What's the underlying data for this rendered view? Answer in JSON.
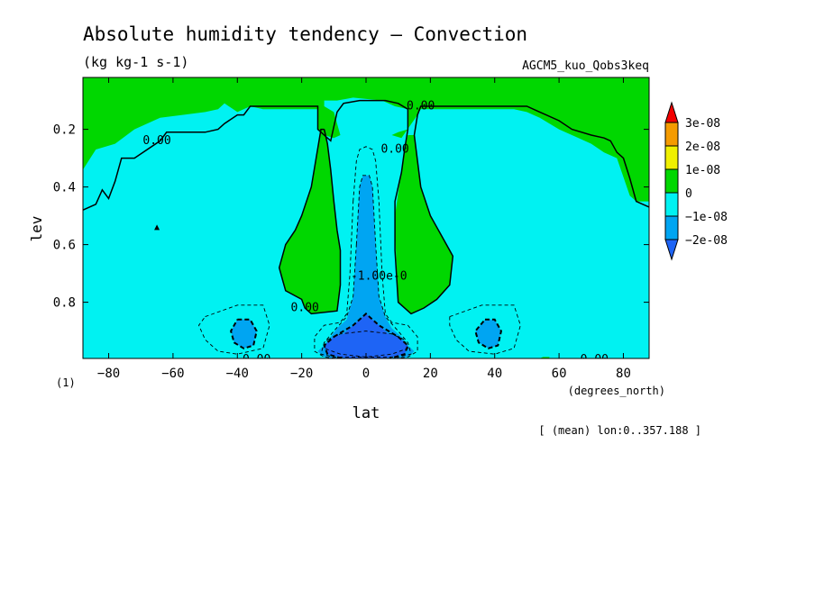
{
  "chart_data": {
    "type": "heatmap",
    "title": "Absolute humidity tendency — Convection",
    "units": "(kg kg-1 s-1)",
    "dataset": "AGCM5_kuo_Qobs3keq",
    "xlabel": "lat",
    "xunits": "(degrees_north)",
    "ylabel": "lev",
    "axis_note": "(1)",
    "footnote": "[ (mean) lon:0..357.188 ]",
    "xlim": [
      -88,
      88
    ],
    "ylim": [
      0.995,
      0.02
    ],
    "xticks": [
      -80,
      -60,
      -40,
      -20,
      0,
      20,
      40,
      60,
      80
    ],
    "yticks": [
      0.2,
      0.4,
      0.6,
      0.8
    ],
    "colorbar": {
      "levels": [
        "3e-08",
        "2e-08",
        "1e-08",
        "0",
        "−1e-08",
        "−2e-08"
      ],
      "colors": [
        "#f20000",
        "#f59b00",
        "#f0f000",
        "#00d700",
        "#00f2f2",
        "#00a5f2",
        "#1e64f5"
      ]
    },
    "contour_labels": [
      {
        "text": "0.00",
        "x": -65,
        "y": 0.24
      },
      {
        "text": "0.00",
        "x": 17,
        "y": 0.12
      },
      {
        "text": "0.00",
        "x": 9,
        "y": 0.27
      },
      {
        "text": "0.00",
        "x": -19,
        "y": 0.82
      },
      {
        "text": "-1.00e-0",
        "x": 4,
        "y": 0.71
      },
      {
        "text": "0.00",
        "x": -34,
        "y": 1.0
      },
      {
        "text": "0.00",
        "x": 71,
        "y": 1.0
      }
    ],
    "regions": [
      {
        "level": "0 to 1e-08",
        "x": [
          -88,
          -84,
          -78,
          -72,
          -64,
          -50,
          -46,
          -44,
          -40,
          -36,
          -32,
          -22,
          -15,
          -15,
          -13,
          -10,
          -8,
          -10,
          -13,
          -13,
          -9,
          -4,
          5,
          9,
          13,
          13,
          10,
          8,
          11,
          16,
          17,
          20,
          30,
          46,
          50,
          54,
          60,
          64,
          70,
          74,
          78,
          82,
          84,
          88,
          88,
          -88
        ],
        "y": [
          0.34,
          0.27,
          0.25,
          0.2,
          0.16,
          0.14,
          0.13,
          0.11,
          0.14,
          0.12,
          0.13,
          0.13,
          0.13,
          0.2,
          0.22,
          0.23,
          0.22,
          0.14,
          0.12,
          0.1,
          0.1,
          0.09,
          0.1,
          0.12,
          0.13,
          0.2,
          0.21,
          0.22,
          0.23,
          0.15,
          0.13,
          0.13,
          0.13,
          0.13,
          0.14,
          0.16,
          0.2,
          0.22,
          0.25,
          0.28,
          0.3,
          0.43,
          0.45,
          0.45,
          0.02,
          0.02
        ]
      },
      {
        "level": "0 to 1e-08",
        "x": [
          -13,
          -12,
          -11,
          -10,
          -9,
          -8,
          -8,
          -9,
          -17,
          -19,
          -20,
          -25,
          -26,
          -27,
          -25,
          -22,
          -20,
          -17,
          -14,
          -13
        ],
        "y": [
          0.2,
          0.25,
          0.34,
          0.45,
          0.55,
          0.62,
          0.74,
          0.83,
          0.84,
          0.82,
          0.79,
          0.76,
          0.72,
          0.68,
          0.6,
          0.55,
          0.5,
          0.4,
          0.2,
          0.2
        ]
      },
      {
        "level": "0 to 1e-08",
        "x": [
          13,
          12,
          11,
          10,
          9,
          9,
          10,
          14,
          18,
          22,
          26,
          27,
          26,
          23,
          20,
          17,
          15,
          13
        ],
        "y": [
          0.22,
          0.27,
          0.35,
          0.42,
          0.5,
          0.55,
          0.8,
          0.84,
          0.82,
          0.79,
          0.74,
          0.64,
          0.62,
          0.56,
          0.5,
          0.4,
          0.22,
          0.22
        ]
      },
      {
        "level": "0 to 1e-08",
        "x": [
          53,
          55,
          57,
          57,
          53
        ],
        "y": [
          1.0,
          0.99,
          0.99,
          1.0,
          1.0
        ]
      },
      {
        "level": "-2e-08 to -1e-08",
        "x": [
          -3,
          -2,
          -1,
          1,
          2,
          3,
          4,
          6,
          8,
          11,
          13,
          15,
          13,
          9,
          5,
          -5,
          -9,
          -13,
          -15,
          -13,
          -11,
          -9,
          -6,
          -4,
          -3
        ],
        "y": [
          0.6,
          0.4,
          0.36,
          0.36,
          0.4,
          0.6,
          0.78,
          0.85,
          0.89,
          0.92,
          0.95,
          0.97,
          0.99,
          1.0,
          1.0,
          1.0,
          1.0,
          0.99,
          0.97,
          0.95,
          0.92,
          0.89,
          0.86,
          0.78,
          0.6
        ]
      },
      {
        "level": "-2e-08 to -1e-08",
        "x": [
          -40,
          -36,
          -34,
          -35,
          -38,
          -41,
          -42,
          -40
        ],
        "y": [
          0.86,
          0.86,
          0.9,
          0.95,
          0.96,
          0.94,
          0.9,
          0.86
        ]
      },
      {
        "level": "-2e-08 to -1e-08",
        "x": [
          37,
          40,
          42,
          41,
          38,
          35,
          34,
          37
        ],
        "y": [
          0.86,
          0.86,
          0.9,
          0.95,
          0.96,
          0.94,
          0.9,
          0.86
        ]
      },
      {
        "level": "below -2e-08",
        "x": [
          -10,
          -7,
          -4,
          -2,
          0,
          2,
          4,
          7,
          10,
          13,
          12,
          8,
          3,
          -3,
          -8,
          -12,
          -13,
          -10
        ],
        "y": [
          0.92,
          0.91,
          0.88,
          0.86,
          0.84,
          0.86,
          0.88,
          0.91,
          0.92,
          0.95,
          0.98,
          0.99,
          1.0,
          1.0,
          0.99,
          0.98,
          0.95,
          0.92
        ]
      }
    ],
    "contour_lines": [
      {
        "style": "solid",
        "x": [
          -88,
          -84,
          -82,
          -80,
          -78,
          -76,
          -72,
          -64,
          -62,
          -50,
          -46,
          -44,
          -40,
          -38,
          -36,
          -20,
          -15,
          -15,
          -13,
          -11,
          -9,
          -7,
          -2,
          6,
          10,
          13,
          13,
          12,
          11,
          9,
          9,
          9,
          10,
          14,
          18,
          22,
          26,
          27,
          26,
          23,
          20,
          17,
          15,
          16,
          17,
          20,
          30,
          46,
          50,
          54,
          60,
          64,
          70,
          74,
          76,
          78,
          80,
          82,
          84,
          86,
          88
        ],
        "y": [
          0.48,
          0.46,
          0.41,
          0.44,
          0.38,
          0.3,
          0.3,
          0.24,
          0.21,
          0.21,
          0.2,
          0.18,
          0.15,
          0.15,
          0.12,
          0.12,
          0.12,
          0.2,
          0.22,
          0.24,
          0.14,
          0.11,
          0.1,
          0.1,
          0.11,
          0.13,
          0.2,
          0.27,
          0.35,
          0.45,
          0.55,
          0.62,
          0.8,
          0.84,
          0.82,
          0.79,
          0.74,
          0.64,
          0.62,
          0.56,
          0.5,
          0.4,
          0.22,
          0.15,
          0.12,
          0.12,
          0.12,
          0.12,
          0.12,
          0.14,
          0.17,
          0.2,
          0.22,
          0.23,
          0.24,
          0.28,
          0.3,
          0.37,
          0.45,
          0.46,
          0.47
        ]
      },
      {
        "style": "solid",
        "x": [
          -13,
          -12,
          -11,
          -10,
          -9,
          -8,
          -8,
          -9,
          -17,
          -19,
          -20,
          -25,
          -26,
          -27,
          -25,
          -22,
          -20,
          -17,
          -14,
          -13
        ],
        "y": [
          0.2,
          0.25,
          0.34,
          0.45,
          0.55,
          0.62,
          0.74,
          0.83,
          0.84,
          0.82,
          0.79,
          0.76,
          0.72,
          0.68,
          0.6,
          0.55,
          0.5,
          0.4,
          0.2,
          0.2
        ]
      },
      {
        "style": "dashed",
        "x": [
          -4,
          -3,
          -2,
          0,
          2,
          3,
          4,
          5,
          6,
          8,
          13,
          16,
          16,
          13,
          5,
          -5,
          -13,
          -16,
          -16,
          -13,
          -8,
          -6,
          -5,
          -4
        ],
        "y": [
          0.45,
          0.31,
          0.27,
          0.26,
          0.27,
          0.31,
          0.45,
          0.7,
          0.84,
          0.87,
          0.88,
          0.92,
          0.97,
          0.99,
          1.0,
          1.0,
          0.99,
          0.97,
          0.92,
          0.88,
          0.87,
          0.84,
          0.7,
          0.45
        ]
      },
      {
        "style": "dashed",
        "x": [
          -3,
          -2,
          -1,
          1,
          2,
          3,
          4,
          6,
          10,
          13,
          14,
          10,
          -10,
          -14,
          -13,
          -10,
          -6,
          -4,
          -3
        ],
        "y": [
          0.6,
          0.4,
          0.36,
          0.36,
          0.4,
          0.6,
          0.78,
          0.85,
          0.9,
          0.94,
          0.98,
          0.99,
          0.99,
          0.98,
          0.94,
          0.9,
          0.85,
          0.78,
          0.6
        ]
      },
      {
        "style": "dashed",
        "x": [
          -50,
          -40,
          -32,
          -30,
          -32,
          -40,
          -46,
          -50,
          -52,
          -50
        ],
        "y": [
          0.85,
          0.81,
          0.81,
          0.88,
          0.96,
          0.98,
          0.97,
          0.93,
          0.88,
          0.85
        ]
      },
      {
        "style": "dashed",
        "x": [
          26,
          36,
          46,
          48,
          46,
          40,
          32,
          28,
          26,
          26
        ],
        "y": [
          0.85,
          0.81,
          0.81,
          0.88,
          0.96,
          0.98,
          0.97,
          0.93,
          0.88,
          0.85
        ]
      },
      {
        "style": "dashed",
        "x": [
          -12,
          -8,
          0,
          8,
          12,
          13,
          8,
          0,
          -8,
          -13,
          -12
        ],
        "y": [
          0.93,
          0.91,
          0.9,
          0.91,
          0.93,
          0.96,
          0.98,
          0.99,
          0.98,
          0.96,
          0.93
        ]
      },
      {
        "style": "dashed-bold",
        "x": [
          -40,
          -36,
          -34,
          -35,
          -38,
          -41,
          -42,
          -40
        ],
        "y": [
          0.86,
          0.86,
          0.9,
          0.95,
          0.96,
          0.94,
          0.9,
          0.86
        ]
      },
      {
        "style": "dashed-bold",
        "x": [
          37,
          40,
          42,
          41,
          38,
          35,
          34,
          37
        ],
        "y": [
          0.86,
          0.86,
          0.9,
          0.95,
          0.96,
          0.94,
          0.9,
          0.86
        ]
      },
      {
        "style": "dashed-bold",
        "x": [
          -10,
          -4,
          0,
          4,
          10,
          13,
          12,
          6,
          -6,
          -12,
          -13,
          -10
        ],
        "y": [
          0.92,
          0.88,
          0.84,
          0.88,
          0.92,
          0.95,
          0.98,
          1.0,
          1.0,
          0.98,
          0.95,
          0.92
        ]
      }
    ],
    "markers": [
      {
        "shape": "triangle",
        "x": -65,
        "y": 0.54
      }
    ]
  }
}
